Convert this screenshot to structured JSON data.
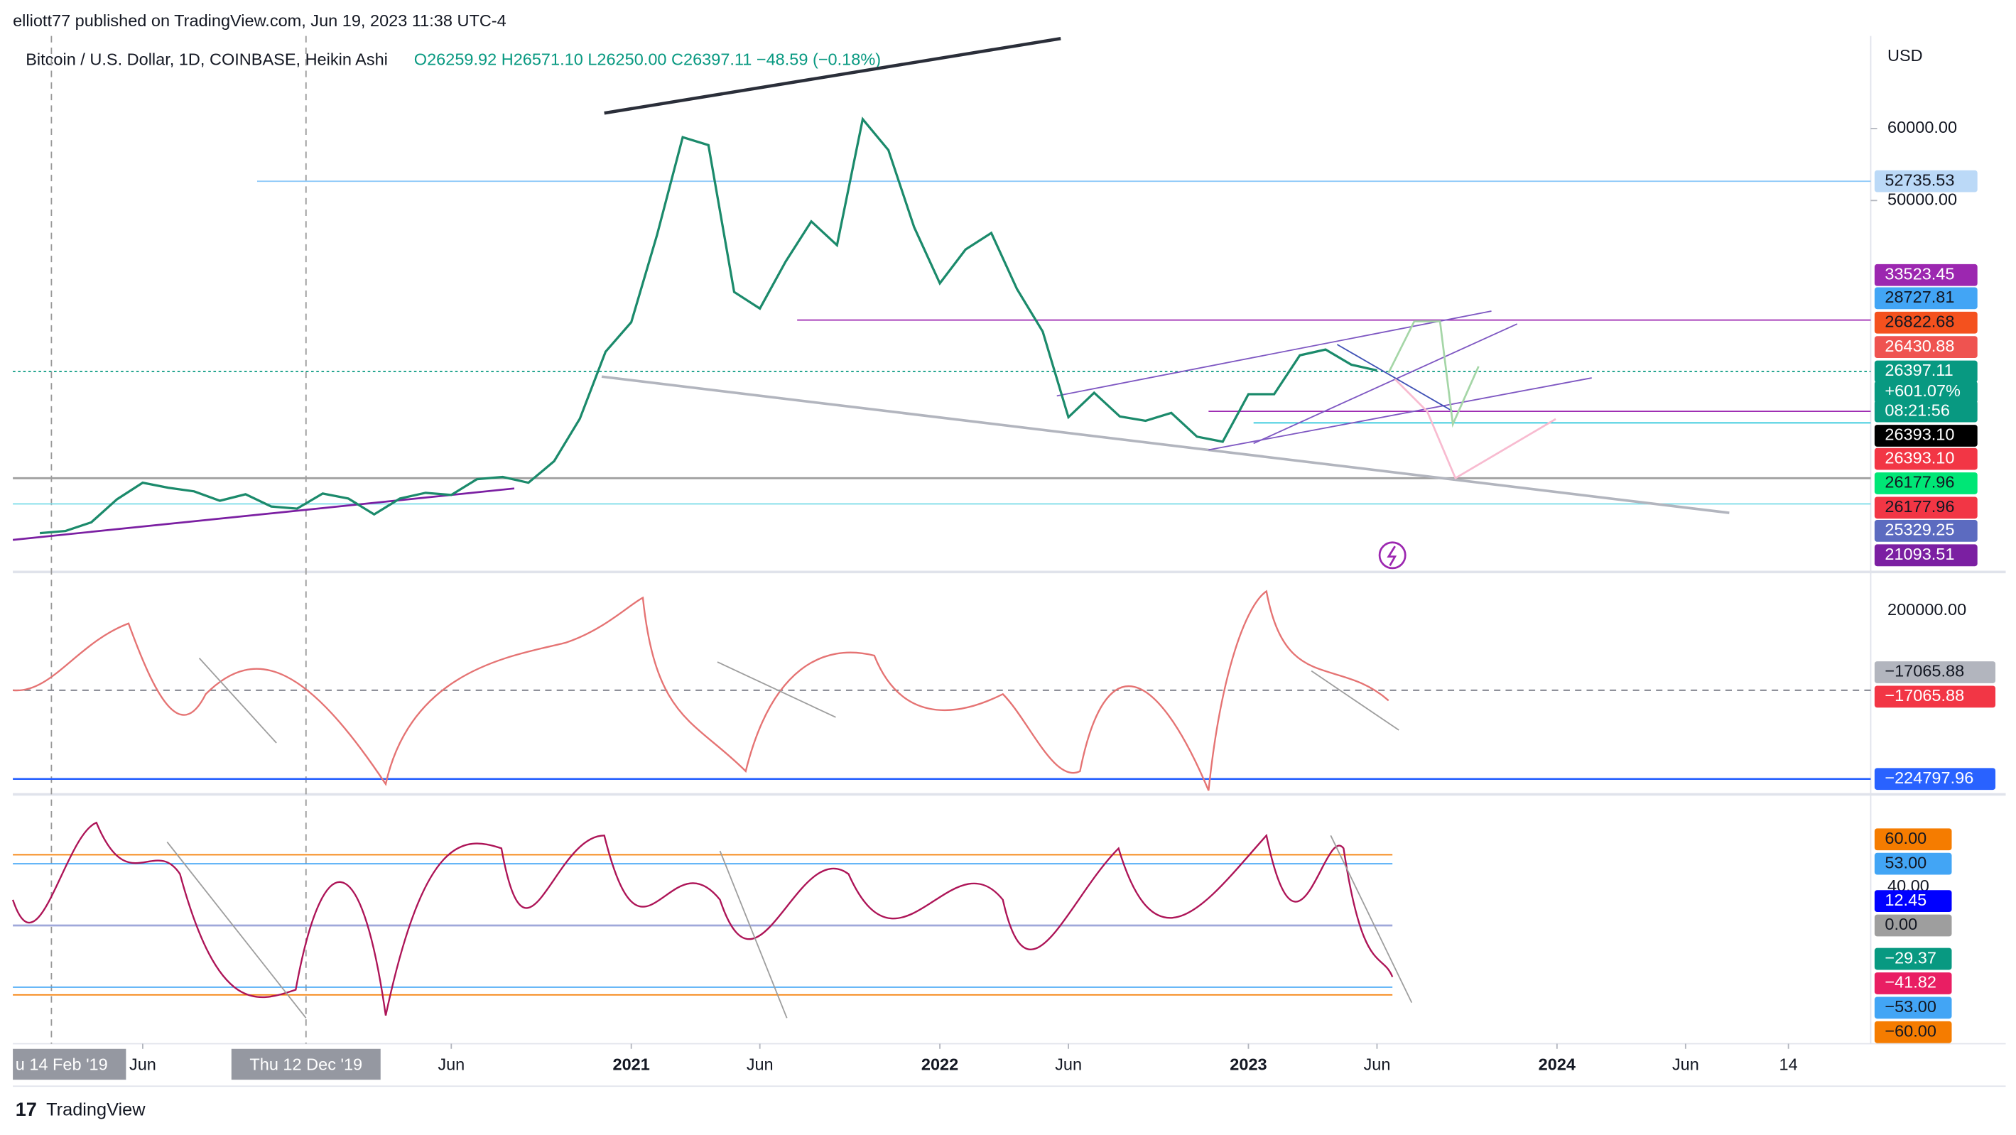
{
  "header": {
    "published": "elliott77 published on TradingView.com, Jun 19, 2023 11:38 UTC-4",
    "symbol": "Bitcoin / U.S. Dollar, 1D, COINBASE, Heikin Ashi",
    "ohlc": "O26259.92 H26571.10 L26250.00 C26397.11 −48.59 (−0.18%)",
    "currency": "USD"
  },
  "chart_data": {
    "type": "line",
    "color": "#1b8a6b",
    "x": [
      "2019-02",
      "2019-03",
      "2019-04",
      "2019-05",
      "2019-06",
      "2019-07",
      "2019-08",
      "2019-09",
      "2019-10",
      "2019-11",
      "2019-12",
      "2020-01",
      "2020-02",
      "2020-03",
      "2020-04",
      "2020-05",
      "2020-06",
      "2020-07",
      "2020-08",
      "2020-09",
      "2020-10",
      "2020-11",
      "2020-12",
      "2021-01",
      "2021-02",
      "2021-03",
      "2021-04",
      "2021-05",
      "2021-06",
      "2021-07",
      "2021-08",
      "2021-09",
      "2021-10",
      "2021-11",
      "2021-12",
      "2022-01",
      "2022-02",
      "2022-03",
      "2022-04",
      "2022-05",
      "2022-06",
      "2022-07",
      "2022-08",
      "2022-09",
      "2022-10",
      "2022-11",
      "2022-12",
      "2023-01",
      "2023-02",
      "2023-03",
      "2023-04",
      "2023-05",
      "2023-06"
    ],
    "values": [
      3800,
      4100,
      5300,
      8500,
      10800,
      10100,
      9600,
      8300,
      9200,
      7500,
      7200,
      9300,
      8600,
      6400,
      8600,
      9400,
      9100,
      11300,
      11600,
      10800,
      13800,
      19700,
      29000,
      33100,
      45200,
      58800,
      57700,
      37300,
      35000,
      41500,
      47100,
      43800,
      61300,
      57000,
      46300,
      38500,
      43200,
      45500,
      37700,
      31800,
      19900,
      23300,
      20000,
      19400,
      20500,
      17200,
      16500,
      23100,
      23100,
      28500,
      29300,
      27200,
      26397
    ],
    "ylim": [
      -1600,
      72500
    ],
    "yticks": [
      {
        "value": 60000,
        "label": "60000.00"
      },
      {
        "value": 50000,
        "label": "50000.00"
      }
    ],
    "xticks": [
      {
        "value": "2019-06",
        "label": "Jun"
      },
      {
        "value": "2020-06",
        "label": "Jun"
      },
      {
        "value": "2021-01",
        "label": "2021"
      },
      {
        "value": "2021-06",
        "label": "Jun"
      },
      {
        "value": "2022-01",
        "label": "2022"
      },
      {
        "value": "2022-06",
        "label": "Jun"
      },
      {
        "value": "2023-01",
        "label": "2023"
      },
      {
        "value": "2023-06",
        "label": "Jun"
      },
      {
        "value": "2024-01",
        "label": "2024"
      },
      {
        "value": "2024-06",
        "label": "Jun"
      },
      {
        "value": "2024-10",
        "label": "14"
      }
    ]
  },
  "price_tags": [
    {
      "label": "52735.53",
      "bg": "#bbd9f7",
      "fg": "#131722"
    },
    {
      "label": "33523.45",
      "bg": "#9c27b0",
      "fg": "#ffffff"
    },
    {
      "label": "28727.81",
      "bg": "#42a5f5",
      "fg": "#131722"
    },
    {
      "label": "26822.68",
      "bg": "#f4511e",
      "fg": "#131722"
    },
    {
      "label": "26430.88",
      "bg": "#ef5350",
      "fg": "#ffffff"
    },
    {
      "label": "26397.11",
      "bg": "#089981",
      "fg": "#ffffff"
    },
    {
      "label": "+601.07%",
      "bg": "#089981",
      "fg": "#ffffff"
    },
    {
      "label": "08:21:56",
      "bg": "#089981",
      "fg": "#ffffff"
    },
    {
      "label": "26393.10",
      "bg": "#000000",
      "fg": "#ffffff"
    },
    {
      "label": "26393.10",
      "bg": "#f23645",
      "fg": "#ffffff"
    },
    {
      "label": "26177.96",
      "bg": "#00e676",
      "fg": "#131722"
    },
    {
      "label": "26177.96",
      "bg": "#f23645",
      "fg": "#131722"
    },
    {
      "label": "25329.25",
      "bg": "#5c6bc0",
      "fg": "#ffffff"
    },
    {
      "label": "21093.51",
      "bg": "#7b1fa2",
      "fg": "#ffffff"
    }
  ],
  "oscillator": {
    "tick": "200000.00",
    "tags": [
      {
        "label": "−17065.88",
        "bg": "#b2b5be",
        "fg": "#131722"
      },
      {
        "label": "−17065.88",
        "bg": "#f23645",
        "fg": "#ffffff"
      },
      {
        "label": "−224797.96",
        "bg": "#2962ff",
        "fg": "#ffffff"
      }
    ]
  },
  "rsi": {
    "tick": "40.00",
    "tags": [
      {
        "label": "60.00",
        "bg": "#f57c00",
        "fg": "#131722"
      },
      {
        "label": "53.00",
        "bg": "#42a5f5",
        "fg": "#131722"
      },
      {
        "label": "12.45",
        "bg": "#0000ff",
        "fg": "#ffffff"
      },
      {
        "label": "0.00",
        "bg": "#9e9e9e",
        "fg": "#131722"
      },
      {
        "label": "−29.37",
        "bg": "#089981",
        "fg": "#ffffff"
      },
      {
        "label": "−41.82",
        "bg": "#e91e63",
        "fg": "#ffffff"
      },
      {
        "label": "−53.00",
        "bg": "#42a5f5",
        "fg": "#131722"
      },
      {
        "label": "−60.00",
        "bg": "#f57c00",
        "fg": "#131722"
      }
    ]
  },
  "crosshair": [
    "u 14 Feb '19",
    "Thu 12 Dec '19"
  ],
  "footer": "TradingView"
}
